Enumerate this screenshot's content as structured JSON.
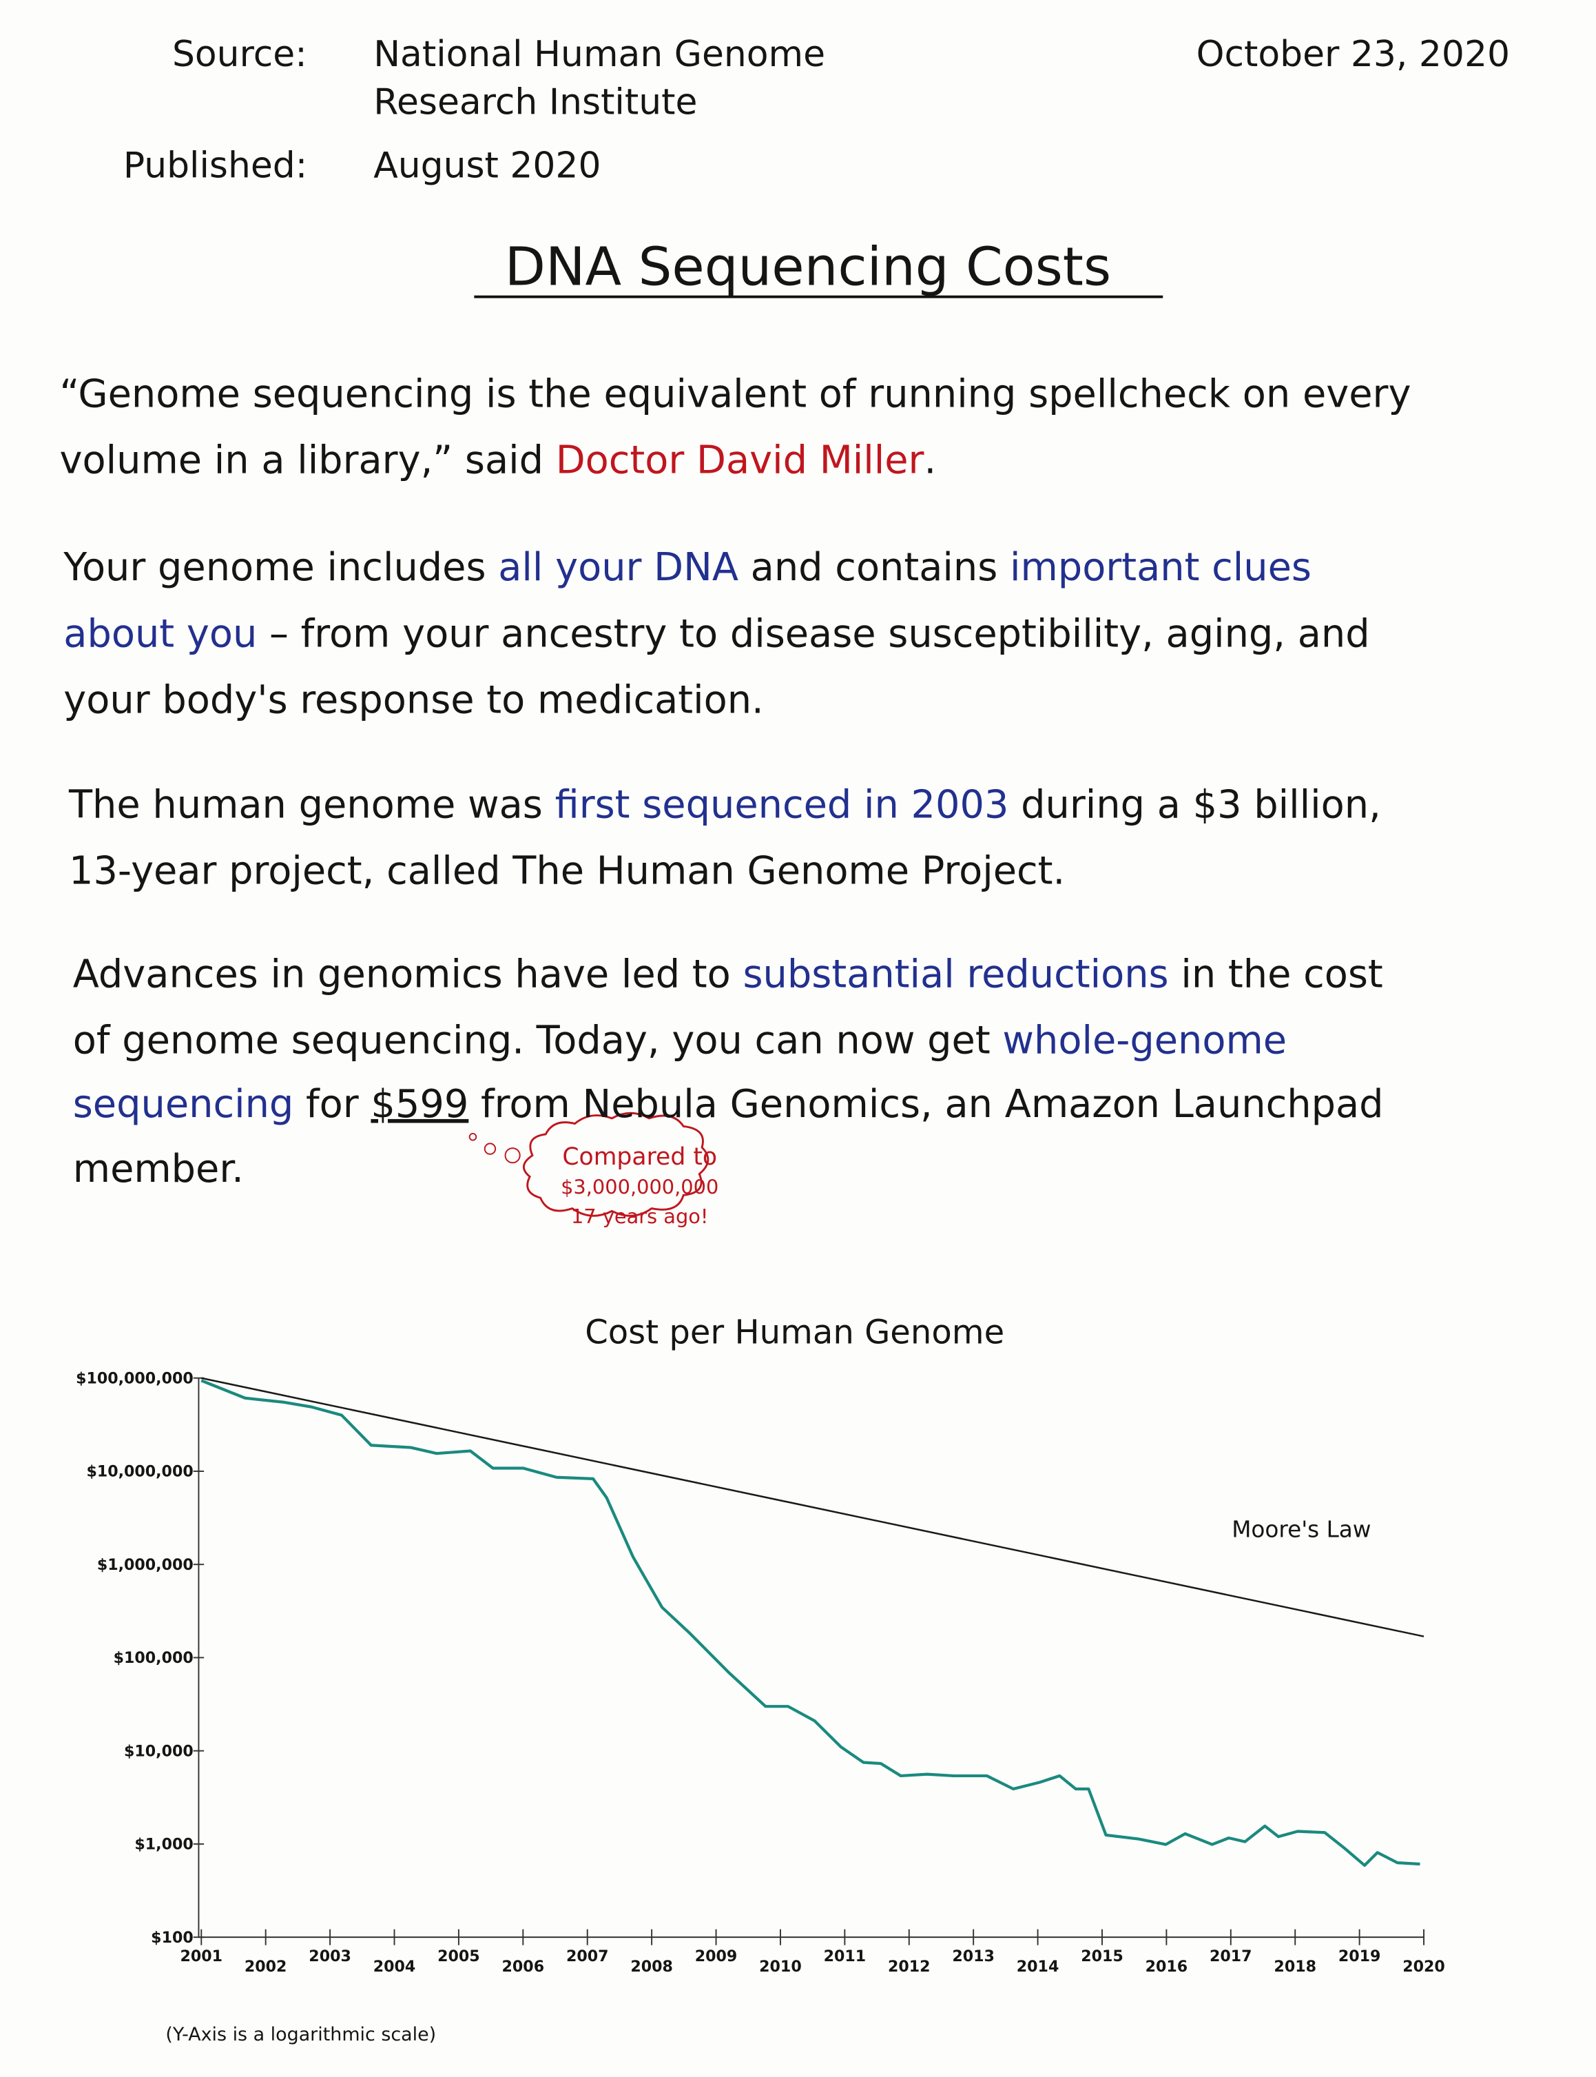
{
  "header": {
    "source_label": "Source:",
    "source_lines": [
      "National Human Genome",
      "Research Institute"
    ],
    "published_label": "Published:",
    "published": "August 2020",
    "date": "October 23, 2020"
  },
  "title": "DNA Sequencing Costs",
  "paragraphs": [
    {
      "lines": [
        [
          {
            "text": "“Genome sequencing is the equivalent of running spellcheck on every"
          }
        ],
        [
          {
            "text": "volume in a library,” said "
          },
          {
            "text": "Doctor David Miller",
            "color": "#c0161e"
          },
          {
            "text": "."
          }
        ]
      ]
    },
    {
      "lines": [
        [
          {
            "text": "Your genome includes "
          },
          {
            "text": "all your DNA",
            "color": "#22308f"
          },
          {
            "text": " and contains "
          },
          {
            "text": "important clues",
            "color": "#22308f"
          }
        ],
        [
          {
            "text": "about you",
            "color": "#22308f"
          },
          {
            "text": " – from your ancestry to disease susceptibility, aging, and"
          }
        ],
        [
          {
            "text": "your body's response to medication."
          }
        ]
      ]
    },
    {
      "lines": [
        [
          {
            "text": "The human genome was "
          },
          {
            "text": "first sequenced in 2003",
            "color": "#22308f"
          },
          {
            "text": " during a $3 billion,"
          }
        ],
        [
          {
            "text": "13-year project, called The Human Genome Project."
          }
        ]
      ]
    },
    {
      "lines": [
        [
          {
            "text": "Advances in genomics have led to "
          },
          {
            "text": "substantial reductions",
            "color": "#22308f"
          },
          {
            "text": " in the cost"
          }
        ],
        [
          {
            "text": "of genome sequencing. Today, you can now get "
          },
          {
            "text": "whole-genome",
            "color": "#22308f"
          }
        ],
        [
          {
            "text": "sequencing",
            "color": "#22308f"
          },
          {
            "text": " for "
          },
          {
            "text": "$599"
          },
          {
            "text": " from Nebula Genomics, an Amazon Launchpad"
          }
        ],
        [
          {
            "text": "member."
          }
        ]
      ]
    }
  ],
  "thought_bubble": [
    "Compared to",
    "$3,000,000,000",
    "17 years ago!"
  ],
  "chart_data": {
    "type": "line",
    "title": "Cost per Human Genome",
    "note": "(Y-Axis is a logarithmic scale)",
    "log_scale": "y",
    "xlim": [
      2001,
      2020
    ],
    "xticks": [
      2001,
      2002,
      2003,
      2004,
      2005,
      2006,
      2007,
      2008,
      2009,
      2010,
      2011,
      2012,
      2013,
      2014,
      2015,
      2016,
      2017,
      2018,
      2019,
      2020
    ],
    "ylim": [
      100,
      100000000
    ],
    "yticks": [
      {
        "value": 100,
        "label": "$100"
      },
      {
        "value": 1000,
        "label": "$1,000"
      },
      {
        "value": 10000,
        "label": "$10,000"
      },
      {
        "value": 100000,
        "label": "$100,000"
      },
      {
        "value": 1000000,
        "label": "$1,000,000"
      },
      {
        "value": 10000000,
        "label": "$10,000,000"
      },
      {
        "value": 100000000,
        "label": "$100,000,000"
      }
    ],
    "series": [
      {
        "color": "#1a8a7e",
        "x": [
          2001.0,
          2001.68,
          2002.29,
          2002.71,
          2003.18,
          2003.64,
          2004.25,
          2004.66,
          2005.18,
          2005.53,
          2006.0,
          2006.52,
          2007.09,
          2007.3,
          2007.71,
          2008.16,
          2008.58,
          2009.19,
          2009.77,
          2010.12,
          2010.53,
          2010.94,
          2011.29,
          2011.56,
          2011.87,
          2012.28,
          2012.69,
          2013.21,
          2013.62,
          2014.03,
          2014.34,
          2014.59,
          2014.79,
          2015.06,
          2015.57,
          2015.99,
          2016.29,
          2016.71,
          2016.97,
          2017.22,
          2017.53,
          2017.74,
          2018.04,
          2018.46,
          2018.77,
          2019.08,
          2019.28,
          2019.59,
          2019.94
        ],
        "values": [
          94000000,
          61000000,
          55000000,
          49000000,
          40000000,
          19000000,
          18000000,
          15500000,
          16500000,
          10800000,
          10800000,
          8600000,
          8300000,
          5200000,
          1200000,
          347000,
          186000,
          70000,
          30000,
          30000,
          21000,
          11000,
          7500,
          7300,
          5400,
          5600,
          5400,
          5400,
          3900,
          4600,
          5400,
          3900,
          3900,
          1250,
          1130,
          990,
          1290,
          990,
          1160,
          1060,
          1560,
          1200,
          1370,
          1330,
          900,
          590,
          810,
          630,
          610
        ]
      },
      {
        "name": "Moore's Law",
        "color": "#1a1a1a",
        "x": [
          2001,
          2020
        ],
        "values": [
          100000000,
          169000
        ]
      }
    ]
  }
}
